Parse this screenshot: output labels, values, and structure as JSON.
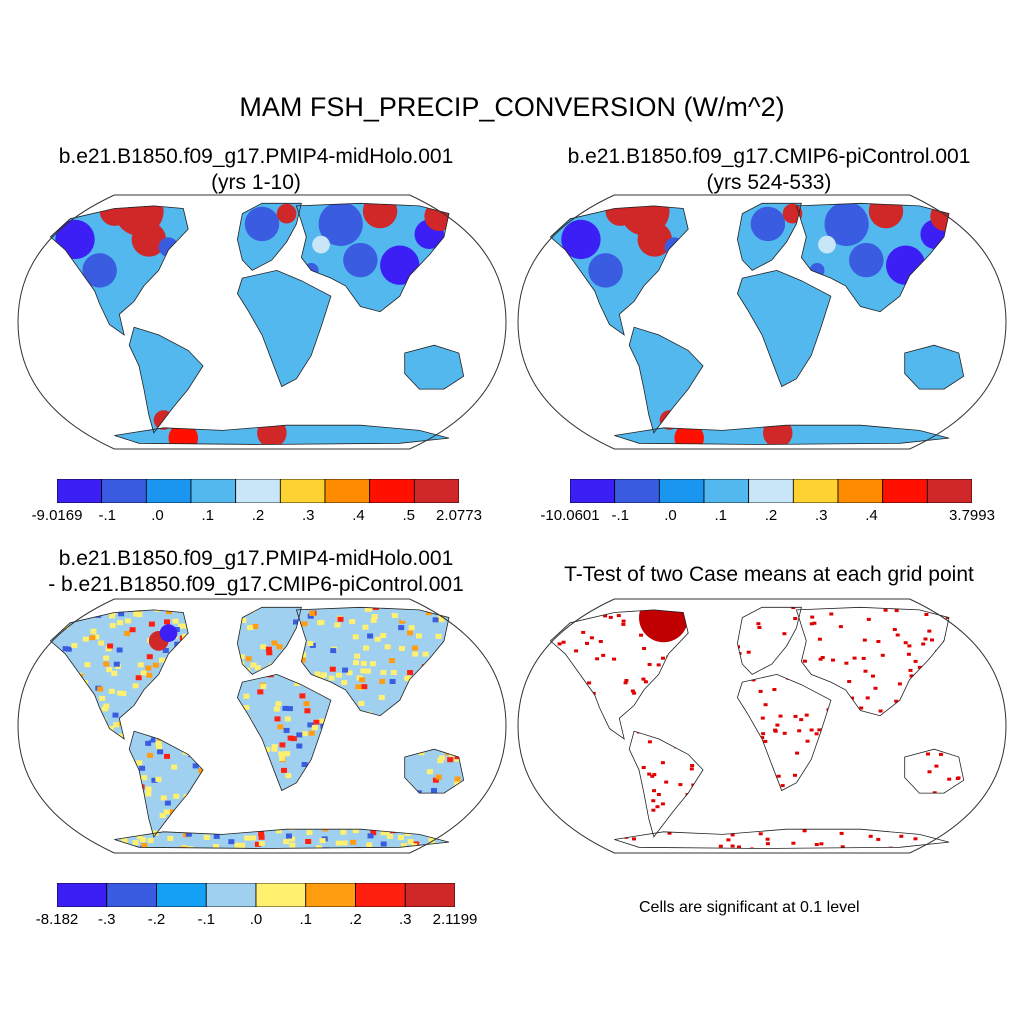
{
  "title": "MAM FSH_PRECIP_CONVERSION (W/m^2)",
  "panels": [
    {
      "title_line1": "b.e21.B1850.f09_g17.PMIP4-midHolo.001",
      "title_line2": "(yrs 1-10)",
      "colors": [
        "#3c1ff5",
        "#3a5ce0",
        "#1a96f0",
        "#52b8ee",
        "#c8e6f8",
        "#fed232",
        "#ff8c00",
        "#ff1000",
        "#d02828"
      ],
      "labels": [
        "-9.0169",
        "-.1",
        ".0",
        ".1",
        ".2",
        ".3",
        ".4",
        ".5",
        "2.0773"
      ]
    },
    {
      "title_line1": "b.e21.B1850.f09_g17.CMIP6-piControl.001",
      "title_line2": "(yrs 524-533)",
      "colors": [
        "#3c1ff5",
        "#3a5ce0",
        "#1a96f0",
        "#52b8ee",
        "#c8e6f8",
        "#fed232",
        "#ff8c00",
        "#ff1000",
        "#d02828"
      ],
      "labels": [
        "-10.0601",
        "-.1",
        ".0",
        ".1",
        ".2",
        ".3",
        ".4",
        "",
        "3.7993"
      ]
    },
    {
      "title_line1": "b.e21.B1850.f09_g17.PMIP4-midHolo.001",
      "title_line2": "- b.e21.B1850.f09_g17.CMIP6-piControl.001",
      "colors": [
        "#3c1ff5",
        "#3a5ce0",
        "#14a0f5",
        "#a0d0f0",
        "#fff070",
        "#ff9c10",
        "#ff2010",
        "#d02828"
      ],
      "labels": [
        "-8.182",
        "-.3",
        "-.2",
        "-.1",
        ".0",
        ".1",
        ".2",
        ".3",
        "2.1199"
      ]
    },
    {
      "title_line1": "T-Test of two Case means at each grid point",
      "note": "Cells are significant at 0.1 level",
      "significant_color": "#e00000"
    }
  ],
  "icons": {
    "map": "world-map-robinson-icon"
  }
}
